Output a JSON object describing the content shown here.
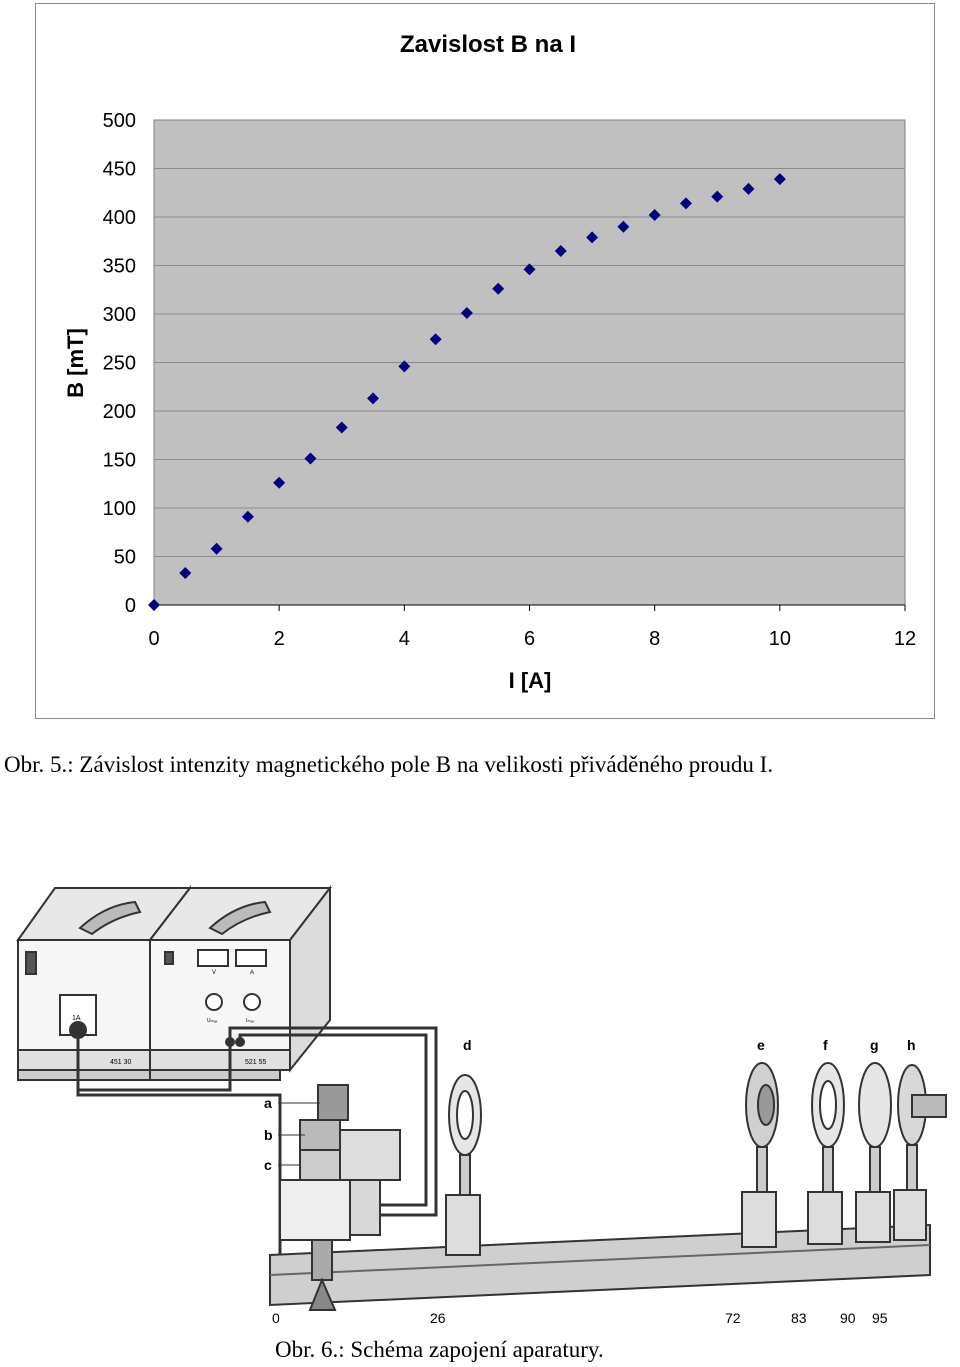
{
  "chart_data": {
    "type": "scatter",
    "title": "Zavislost B na I",
    "xlabel": "I [A]",
    "ylabel": "B [mT]",
    "xlim": [
      0,
      12
    ],
    "ylim": [
      0,
      500
    ],
    "xticks": [
      "0",
      "2",
      "4",
      "6",
      "8",
      "10",
      "12"
    ],
    "yticks": [
      "0",
      "50",
      "100",
      "150",
      "200",
      "250",
      "300",
      "350",
      "400",
      "450",
      "500"
    ],
    "grid": "horizontal",
    "legend": "none",
    "series": [
      {
        "color": "#00007f",
        "marker": "diamond",
        "x": [
          0,
          0.5,
          1,
          1.5,
          2,
          2.5,
          3,
          3.5,
          4,
          4.5,
          5,
          5.5,
          6,
          6.5,
          7,
          7.5,
          8,
          8.5,
          9,
          9.5,
          10
        ],
        "y": [
          0,
          33,
          58,
          91,
          126,
          151,
          183,
          213,
          246,
          274,
          301,
          326,
          346,
          365,
          379,
          390,
          402,
          414,
          421,
          429,
          439
        ]
      }
    ]
  },
  "caption1": "Obr. 5.: Závislost intenzity magnetického pole B na velikosti přiváděného proudu I.",
  "apparatus": {
    "labels": {
      "a": "a",
      "b": "b",
      "c": "c",
      "d": "d",
      "e": "e",
      "f": "f",
      "g": "g",
      "h": "h"
    },
    "scale": [
      "0",
      "26",
      "72",
      "83",
      "90",
      "95"
    ],
    "panel": {
      "fuse": "1A",
      "model_left": "451 30",
      "model_right": "521 55",
      "meter_v": "V",
      "meter_a": "A",
      "knob_left": "Uₘₐₓ",
      "knob_right": "Iₘₐₓ"
    }
  },
  "caption2": "Obr. 6.: Schéma zapojení aparatury."
}
